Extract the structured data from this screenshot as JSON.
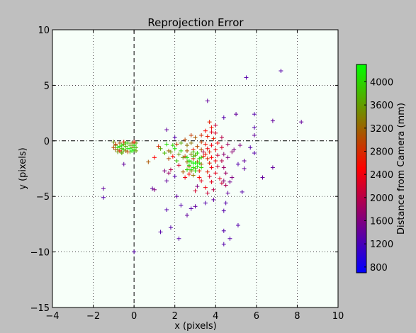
{
  "chart_data": {
    "type": "scatter",
    "title": "Reprojection Error",
    "xlabel": "x (pixels)",
    "ylabel": "y (pixels)",
    "xlim": [
      -4,
      10
    ],
    "ylim": [
      -15,
      10
    ],
    "xticks": [
      "−4",
      "−2",
      "0",
      "2",
      "4",
      "6",
      "8",
      "10"
    ],
    "yticks": [
      "10",
      "5",
      "0",
      "−5",
      "−10",
      "−15"
    ],
    "xtick_values": [
      -4,
      -2,
      0,
      2,
      4,
      6,
      8,
      10
    ],
    "ytick_values": [
      10,
      5,
      0,
      -5,
      -10,
      -15
    ],
    "grid": true,
    "marker": "+",
    "colorbar": {
      "label": "Distance from Camera (mm)",
      "ticks": [
        "800",
        "1200",
        "1600",
        "2000",
        "2400",
        "2800",
        "3200",
        "3600",
        "4000"
      ],
      "tick_values": [
        800,
        1200,
        1600,
        2000,
        2400,
        2800,
        3200,
        3600,
        4000
      ],
      "range": [
        700,
        4300
      ],
      "colors": [
        "#0000ff",
        "#ff0000",
        "#00ff00"
      ]
    },
    "points": [
      [
        7.2,
        6.3,
        1300
      ],
      [
        5.5,
        5.7,
        1300
      ],
      [
        5.9,
        2.4,
        1300
      ],
      [
        5.0,
        2.4,
        1400
      ],
      [
        4.4,
        2.1,
        1300
      ],
      [
        3.6,
        3.6,
        1400
      ],
      [
        6.8,
        1.8,
        1400
      ],
      [
        8.2,
        1.7,
        1400
      ],
      [
        5.9,
        1.2,
        1300
      ],
      [
        5.9,
        0.5,
        1400
      ],
      [
        5.7,
        -0.6,
        1300
      ],
      [
        5.9,
        -1.1,
        1300
      ],
      [
        5.4,
        -1.8,
        1400
      ],
      [
        5.1,
        -2.1,
        1300
      ],
      [
        5.4,
        -2.5,
        1400
      ],
      [
        6.8,
        -2.4,
        1400
      ],
      [
        6.3,
        -3.3,
        1400
      ],
      [
        5.3,
        -4.6,
        1300
      ],
      [
        4.6,
        -4.7,
        1400
      ],
      [
        4.5,
        -5.6,
        1300
      ],
      [
        4.4,
        -6.3,
        1300
      ],
      [
        3.9,
        -5.3,
        1400
      ],
      [
        3.5,
        -5.6,
        1300
      ],
      [
        5.1,
        -7.6,
        1300
      ],
      [
        4.4,
        -8.1,
        1300
      ],
      [
        4.7,
        -8.8,
        1300
      ],
      [
        4.4,
        -9.3,
        1300
      ],
      [
        2.2,
        -8.8,
        1300
      ],
      [
        1.3,
        -8.2,
        1300
      ],
      [
        1.8,
        -7.8,
        1300
      ],
      [
        1.6,
        -6.2,
        1300
      ],
      [
        2.6,
        -6.7,
        1400
      ],
      [
        2.3,
        -5.8,
        1300
      ],
      [
        2.8,
        -6.1,
        1300
      ],
      [
        3.0,
        -5.9,
        1400
      ],
      [
        2.1,
        -5.0,
        1400
      ],
      [
        0.9,
        -4.3,
        1400
      ],
      [
        1.0,
        -4.4,
        1600
      ],
      [
        1.6,
        -3.6,
        1400
      ],
      [
        2.0,
        -3.2,
        1300
      ],
      [
        1.5,
        -2.7,
        1600
      ],
      [
        1.7,
        -2.9,
        1800
      ],
      [
        -1.5,
        -4.3,
        1400
      ],
      [
        -1.5,
        -5.1,
        1300
      ],
      [
        -0.5,
        -2.1,
        1400
      ],
      [
        0.0,
        -10.0,
        1300
      ],
      [
        1.6,
        1.0,
        1400
      ],
      [
        2.0,
        0.3,
        1300
      ],
      [
        1.2,
        -0.5,
        2800
      ],
      [
        1.3,
        -0.7,
        3700
      ],
      [
        1.5,
        -1.1,
        3800
      ],
      [
        1.7,
        -0.9,
        3200
      ],
      [
        1.6,
        -0.3,
        4100
      ],
      [
        1.9,
        -0.4,
        4000
      ],
      [
        1.8,
        -1.0,
        3500
      ],
      [
        2.0,
        -0.7,
        4100
      ],
      [
        2.1,
        -0.3,
        2900
      ],
      [
        2.2,
        -1.2,
        3600
      ],
      [
        2.3,
        -0.9,
        4000
      ],
      [
        1.9,
        -1.4,
        2500
      ],
      [
        2.1,
        -1.8,
        3900
      ],
      [
        2.2,
        -2.2,
        2200
      ],
      [
        1.8,
        -2.6,
        2000
      ],
      [
        1.7,
        -1.6,
        3000
      ],
      [
        2.4,
        -1.5,
        3500
      ],
      [
        2.3,
        -0.2,
        3700
      ],
      [
        0.7,
        -1.9,
        3100
      ],
      [
        1.0,
        -1.5,
        2500
      ],
      [
        2.5,
        0.1,
        3000
      ],
      [
        2.6,
        -0.4,
        3300
      ],
      [
        2.6,
        -0.9,
        3100
      ],
      [
        2.5,
        -1.4,
        2900
      ],
      [
        2.6,
        -1.9,
        3200
      ],
      [
        2.7,
        -2.3,
        2800
      ],
      [
        2.8,
        0.5,
        2900
      ],
      [
        2.8,
        -0.2,
        3300
      ],
      [
        2.9,
        -0.8,
        2600
      ],
      [
        2.8,
        -1.2,
        3400
      ],
      [
        2.9,
        -1.6,
        2800
      ],
      [
        2.8,
        -2.7,
        3000
      ],
      [
        2.7,
        -3.0,
        2500
      ],
      [
        2.5,
        -3.3,
        2400
      ],
      [
        2.6,
        -2.6,
        3500
      ],
      [
        2.4,
        -2.8,
        3100
      ],
      [
        3.0,
        0.3,
        3100
      ],
      [
        3.1,
        -0.5,
        3000
      ],
      [
        3.0,
        -1.3,
        3600
      ],
      [
        3.1,
        -1.9,
        3200
      ],
      [
        3.0,
        -2.5,
        3600
      ],
      [
        2.9,
        -3.1,
        3300
      ],
      [
        3.2,
        -2.7,
        2700
      ],
      [
        3.2,
        -3.3,
        2500
      ],
      [
        3.3,
        -3.6,
        2300
      ],
      [
        3.1,
        -4.1,
        1600
      ],
      [
        3.0,
        -4.5,
        2200
      ],
      [
        3.3,
        -0.1,
        2900
      ],
      [
        3.3,
        -0.8,
        3000
      ],
      [
        3.4,
        -1.4,
        2600
      ],
      [
        3.3,
        -2.1,
        3100
      ],
      [
        2.6,
        -1.5,
        4100
      ],
      [
        2.7,
        -1.8,
        4200
      ],
      [
        2.7,
        -2.2,
        4100
      ],
      [
        2.8,
        -1.9,
        4000
      ],
      [
        2.9,
        -2.0,
        4200
      ],
      [
        2.9,
        -2.4,
        4100
      ],
      [
        3.0,
        -2.0,
        4300
      ],
      [
        3.1,
        -2.3,
        4100
      ],
      [
        3.0,
        -2.7,
        4000
      ],
      [
        3.2,
        -1.6,
        4100
      ],
      [
        3.2,
        -2.0,
        4200
      ],
      [
        3.3,
        -2.4,
        4000
      ],
      [
        2.9,
        -1.4,
        3900
      ],
      [
        2.6,
        -2.6,
        4000
      ],
      [
        3.3,
        -1.5,
        3900
      ],
      [
        2.8,
        -2.6,
        4100
      ],
      [
        3.1,
        -1.1,
        4000
      ],
      [
        2.9,
        -1.0,
        3800
      ],
      [
        3.5,
        0.9,
        2500
      ],
      [
        3.6,
        0.4,
        2700
      ],
      [
        3.5,
        -0.3,
        2600
      ],
      [
        3.6,
        -0.7,
        2400
      ],
      [
        3.5,
        -1.2,
        2600
      ],
      [
        3.6,
        -1.6,
        2700
      ],
      [
        3.7,
        1.7,
        2700
      ],
      [
        3.8,
        1.2,
        2600
      ],
      [
        3.8,
        0.8,
        2300
      ],
      [
        3.9,
        0.2,
        2700
      ],
      [
        3.8,
        -0.4,
        2400
      ],
      [
        3.7,
        -1.0,
        2700
      ],
      [
        3.8,
        -1.5,
        2500
      ],
      [
        3.7,
        -2.0,
        2700
      ],
      [
        3.8,
        -2.4,
        2400
      ],
      [
        3.6,
        -2.8,
        2700
      ],
      [
        3.7,
        -3.2,
        2200
      ],
      [
        3.8,
        -3.7,
        2300
      ],
      [
        3.5,
        -4.2,
        2400
      ],
      [
        3.6,
        -4.7,
        2100
      ],
      [
        3.9,
        -4.4,
        2000
      ],
      [
        4.0,
        1.4,
        2100
      ],
      [
        4.0,
        0.7,
        2200
      ],
      [
        4.1,
        -0.2,
        2500
      ],
      [
        4.0,
        -0.8,
        2400
      ],
      [
        4.1,
        -1.3,
        2100
      ],
      [
        4.0,
        -1.8,
        2400
      ],
      [
        4.1,
        -2.3,
        2100
      ],
      [
        4.0,
        -2.9,
        2300
      ],
      [
        4.2,
        -3.4,
        2300
      ],
      [
        4.3,
        0.3,
        2000
      ],
      [
        4.3,
        -0.6,
        2200
      ],
      [
        4.4,
        -1.2,
        1700
      ],
      [
        4.3,
        -1.8,
        2000
      ],
      [
        4.4,
        -2.4,
        1800
      ],
      [
        4.5,
        -2.9,
        1800
      ],
      [
        4.3,
        -3.8,
        2100
      ],
      [
        4.5,
        -4.0,
        1900
      ],
      [
        4.4,
        -3.6,
        1700
      ],
      [
        4.6,
        -0.3,
        1800
      ],
      [
        4.8,
        -1.0,
        1700
      ],
      [
        4.6,
        -1.5,
        1600
      ],
      [
        4.8,
        -3.3,
        1600
      ],
      [
        4.7,
        -3.7,
        1500
      ],
      [
        4.9,
        -0.8,
        1600
      ],
      [
        5.2,
        -0.4,
        1600
      ],
      [
        3.4,
        -1.0,
        2000
      ],
      [
        3.3,
        0.5,
        2800
      ],
      [
        -1.0,
        -0.1,
        3500
      ],
      [
        -0.9,
        -0.4,
        3700
      ],
      [
        -0.9,
        -0.8,
        3200
      ],
      [
        -0.8,
        -1.0,
        3600
      ],
      [
        -0.7,
        -0.5,
        3900
      ],
      [
        -0.7,
        -0.2,
        3100
      ],
      [
        -0.6,
        -0.7,
        3800
      ],
      [
        -0.6,
        -1.0,
        3500
      ],
      [
        -0.5,
        -0.3,
        3400
      ],
      [
        -0.5,
        -0.8,
        4000
      ],
      [
        -0.4,
        -0.5,
        3700
      ],
      [
        -0.4,
        -0.9,
        3300
      ],
      [
        -0.3,
        -0.2,
        3800
      ],
      [
        -0.3,
        -0.7,
        4100
      ],
      [
        -0.2,
        -0.4,
        3600
      ],
      [
        -0.2,
        -1.0,
        3900
      ],
      [
        -0.1,
        -0.6,
        3500
      ],
      [
        -0.1,
        -0.2,
        3300
      ],
      [
        0.0,
        -0.8,
        4000
      ],
      [
        0.0,
        -0.4,
        4100
      ],
      [
        0.1,
        -0.6,
        3800
      ],
      [
        0.1,
        -0.2,
        3700
      ],
      [
        -0.8,
        -0.6,
        4200
      ],
      [
        -0.9,
        -0.3,
        2800
      ],
      [
        -0.7,
        -0.9,
        2600
      ],
      [
        -0.5,
        -0.1,
        2700
      ],
      [
        -0.3,
        -1.0,
        2900
      ],
      [
        0.0,
        -0.1,
        2500
      ],
      [
        -1.0,
        -0.6,
        3000
      ],
      [
        -0.6,
        -0.4,
        4100
      ],
      [
        -0.2,
        -0.7,
        4200
      ],
      [
        0.1,
        -0.9,
        3600
      ],
      [
        -0.4,
        -0.2,
        4000
      ],
      [
        -0.8,
        -0.8,
        3400
      ],
      [
        -0.6,
        -1.1,
        3700
      ],
      [
        -0.1,
        -0.9,
        4200
      ]
    ]
  }
}
